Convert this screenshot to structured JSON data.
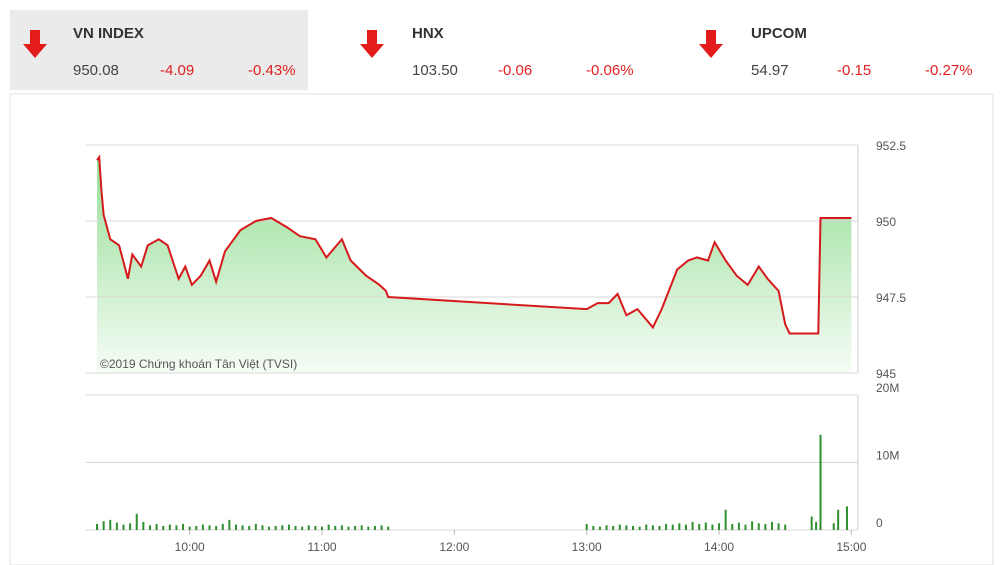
{
  "indices": [
    {
      "name": "VN INDEX",
      "value": "950.08",
      "change": "-4.09",
      "pct": "-0.43%"
    },
    {
      "name": "HNX",
      "value": "103.50",
      "change": "-0.06",
      "pct": "-0.06%"
    },
    {
      "name": "UPCOM",
      "value": "54.97",
      "change": "-0.15",
      "pct": "-0.27%"
    }
  ],
  "chart_data": [
    {
      "type": "line",
      "color": "#d7191c",
      "fill_color": "#8fdc8f",
      "annotation": "©2019 Chứng khoán Tân Việt (TVSI)",
      "x": [
        "09:18",
        "09:19",
        "09:20",
        "09:21",
        "09:24",
        "09:28",
        "09:32",
        "09:34",
        "09:38",
        "09:41",
        "09:46",
        "09:50",
        "09:55",
        "09:58",
        "10:01",
        "10:05",
        "10:09",
        "10:12",
        "10:16",
        "10:23",
        "10:30",
        "10:37",
        "10:44",
        "10:50",
        "10:57",
        "11:02",
        "11:09",
        "11:13",
        "11:20",
        "11:26",
        "11:29",
        "11:30",
        "13:00",
        "13:05",
        "13:10",
        "13:14",
        "13:18",
        "13:23",
        "13:30",
        "13:34",
        "13:41",
        "13:46",
        "13:50",
        "13:55",
        "13:58",
        "14:03",
        "14:08",
        "14:13",
        "14:18",
        "14:22",
        "14:27",
        "14:30",
        "14:32",
        "14:45",
        "14:46",
        "15:00"
      ],
      "values": [
        952.0,
        952.1,
        951.0,
        950.2,
        949.4,
        949.2,
        948.1,
        948.9,
        948.5,
        949.2,
        949.4,
        949.2,
        948.1,
        948.5,
        947.9,
        948.2,
        948.7,
        948.0,
        949.0,
        949.7,
        950.0,
        950.1,
        949.8,
        949.5,
        949.4,
        948.8,
        949.4,
        948.7,
        948.2,
        947.9,
        947.7,
        947.5,
        947.1,
        947.3,
        947.3,
        947.6,
        946.9,
        947.1,
        946.5,
        947.1,
        948.4,
        948.7,
        948.8,
        948.7,
        949.3,
        948.7,
        948.2,
        947.9,
        948.5,
        948.1,
        947.7,
        946.6,
        946.3,
        946.3,
        950.1,
        950.1
      ],
      "xlim": [
        "09:13",
        "15:03"
      ],
      "ylim": [
        945,
        952.5
      ],
      "yticks": [
        945,
        947.5,
        950,
        952.5
      ],
      "grid": true
    },
    {
      "type": "bar",
      "color": "#2f8f2f",
      "x": [
        "09:18",
        "09:21",
        "09:24",
        "09:27",
        "09:30",
        "09:33",
        "09:36",
        "09:39",
        "09:42",
        "09:45",
        "09:48",
        "09:51",
        "09:54",
        "09:57",
        "10:00",
        "10:03",
        "10:06",
        "10:09",
        "10:12",
        "10:15",
        "10:18",
        "10:21",
        "10:24",
        "10:27",
        "10:30",
        "10:33",
        "10:36",
        "10:39",
        "10:42",
        "10:45",
        "10:48",
        "10:51",
        "10:54",
        "10:57",
        "11:00",
        "11:03",
        "11:06",
        "11:09",
        "11:12",
        "11:15",
        "11:18",
        "11:21",
        "11:24",
        "11:27",
        "11:30",
        "13:00",
        "13:03",
        "13:06",
        "13:09",
        "13:12",
        "13:15",
        "13:18",
        "13:21",
        "13:24",
        "13:27",
        "13:30",
        "13:33",
        "13:36",
        "13:39",
        "13:42",
        "13:45",
        "13:48",
        "13:51",
        "13:54",
        "13:57",
        "14:00",
        "14:03",
        "14:06",
        "14:09",
        "14:12",
        "14:15",
        "14:18",
        "14:21",
        "14:24",
        "14:27",
        "14:30",
        "14:42",
        "14:44",
        "14:46",
        "14:52",
        "14:54",
        "14:58"
      ],
      "values": [
        900000,
        1300000,
        1500000,
        1100000,
        800000,
        1000000,
        2400000,
        1200000,
        700000,
        900000,
        600000,
        800000,
        700000,
        900000,
        500000,
        600000,
        800000,
        700000,
        600000,
        900000,
        1500000,
        800000,
        700000,
        600000,
        900000,
        700000,
        500000,
        600000,
        700000,
        800000,
        600000,
        500000,
        700000,
        600000,
        500000,
        800000,
        600000,
        700000,
        500000,
        600000,
        700000,
        500000,
        600000,
        700000,
        500000,
        900000,
        600000,
        500000,
        700000,
        600000,
        800000,
        700000,
        600000,
        500000,
        800000,
        700000,
        600000,
        900000,
        800000,
        1000000,
        800000,
        1200000,
        900000,
        1100000,
        800000,
        1000000,
        3000000,
        900000,
        1100000,
        800000,
        1300000,
        1000000,
        900000,
        1200000,
        1000000,
        800000,
        2000000,
        1200000,
        14100000,
        1000000,
        3000000,
        3500000
      ],
      "xlim": [
        "09:13",
        "15:03"
      ],
      "ylim": [
        0,
        20000000
      ],
      "yticks": [
        0,
        {
          "value": 10000000,
          "label": "10M"
        },
        {
          "value": 20000000,
          "label": "20M"
        }
      ],
      "xticks": [
        "10:00",
        "11:00",
        "12:00",
        "13:00",
        "14:00",
        "15:00"
      ],
      "grid": true
    }
  ]
}
